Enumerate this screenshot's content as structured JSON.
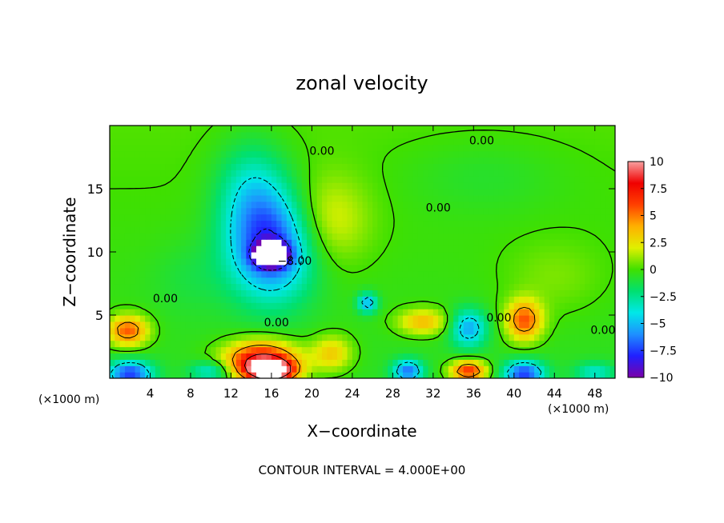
{
  "chart_data": {
    "type": "heatmap",
    "title": "zonal velocity",
    "xlabel": "X−coordinate",
    "ylabel": "Z−coordinate",
    "x_unit_left": "(×1000 m)",
    "x_unit_right": "(×1000 m)",
    "xlim": [
      0,
      50
    ],
    "ylim": [
      0,
      20
    ],
    "x_ticks": [
      4,
      8,
      12,
      16,
      20,
      24,
      28,
      32,
      36,
      40,
      44,
      48
    ],
    "x_tick_labels": [
      "4",
      "8",
      "12",
      "16",
      "20",
      "24",
      "28",
      "32",
      "36",
      "40",
      "44",
      "48"
    ],
    "y_ticks": [
      5,
      10,
      15
    ],
    "y_tick_labels": [
      "5",
      "10",
      "15"
    ],
    "colorbar": {
      "min": -10,
      "max": 10,
      "ticks": [
        10,
        7.5,
        5,
        2.5,
        0,
        -2.5,
        -5,
        -7.5,
        -10
      ],
      "tick_labels": [
        "10",
        "7.5",
        "5",
        "2.5",
        "0",
        "−2.5",
        "−5",
        "−7.5",
        "−10"
      ],
      "colors": [
        "#7a00a8",
        "#2020ff",
        "#1e90ff",
        "#00e8e8",
        "#00e070",
        "#40e000",
        "#e0f000",
        "#ffb000",
        "#ff4000",
        "#f00000",
        "#f8a0a0"
      ]
    },
    "contour_interval_text": "CONTOUR INTERVAL = 4.000E+00",
    "contour_level_labels": [
      {
        "text": "0.00",
        "x": 21,
        "y": 17.7
      },
      {
        "text": "0.00",
        "x": 36.8,
        "y": 18.5
      },
      {
        "text": "0.00",
        "x": 32.5,
        "y": 13.2
      },
      {
        "text": "0.00",
        "x": 5.5,
        "y": 6.0
      },
      {
        "text": "0.00",
        "x": 16.5,
        "y": 4.1
      },
      {
        "text": "0.00",
        "x": 38.5,
        "y": 4.5
      },
      {
        "text": "0.00",
        "x": 48.8,
        "y": 3.5
      },
      {
        "text": "−8.00",
        "x": 18.3,
        "y": 9.0
      }
    ],
    "features": [
      {
        "cx": 16,
        "cy": 10.5,
        "rx": 4.2,
        "ry": 4.2,
        "v": -7.5
      },
      {
        "cx": 16,
        "cy": 9.8,
        "rx": 1.6,
        "ry": 0.9,
        "v": -11
      },
      {
        "cx": 14,
        "cy": 15,
        "rx": 3.5,
        "ry": 4,
        "v": -3
      },
      {
        "cx": 21.5,
        "cy": 12.5,
        "rx": 4,
        "ry": 3.5,
        "v": 2.5
      },
      {
        "cx": 15,
        "cy": 1.4,
        "rx": 3.6,
        "ry": 1.5,
        "v": 9
      },
      {
        "cx": 16,
        "cy": 0.6,
        "rx": 2.2,
        "ry": 0.8,
        "v": 11
      },
      {
        "cx": 1.8,
        "cy": 3.8,
        "rx": 2,
        "ry": 1.2,
        "v": 6
      },
      {
        "cx": 2,
        "cy": 0.4,
        "rx": 2.2,
        "ry": 1,
        "v": -7
      },
      {
        "cx": 41,
        "cy": 4.6,
        "rx": 1.8,
        "ry": 1.6,
        "v": 6
      },
      {
        "cx": 41,
        "cy": 0.4,
        "rx": 2,
        "ry": 1,
        "v": -7
      },
      {
        "cx": 35.5,
        "cy": 4,
        "rx": 1.8,
        "ry": 1.5,
        "v": -5
      },
      {
        "cx": 35.5,
        "cy": 0.6,
        "rx": 1.8,
        "ry": 0.8,
        "v": 7
      },
      {
        "cx": 29.5,
        "cy": 0.6,
        "rx": 1.5,
        "ry": 0.9,
        "v": -6
      },
      {
        "cx": 31,
        "cy": 4.5,
        "rx": 2.5,
        "ry": 1,
        "v": 4
      },
      {
        "cx": 25.5,
        "cy": 6,
        "rx": 1,
        "ry": 0.8,
        "v": -5
      },
      {
        "cx": 22,
        "cy": 2,
        "rx": 2,
        "ry": 1.4,
        "v": 3.5
      },
      {
        "cx": 10,
        "cy": 0.6,
        "rx": 2,
        "ry": 0.8,
        "v": -3.5
      },
      {
        "cx": 48,
        "cy": 0.5,
        "rx": 2,
        "ry": 0.8,
        "v": -3
      },
      {
        "cx": 44,
        "cy": 8,
        "rx": 5,
        "ry": 3,
        "v": 1
      },
      {
        "cx": 8,
        "cy": 8,
        "rx": 4,
        "ry": 3,
        "v": -0.8
      },
      {
        "cx": 37,
        "cy": 16,
        "rx": 8,
        "ry": 3,
        "v": -0.8
      }
    ]
  }
}
